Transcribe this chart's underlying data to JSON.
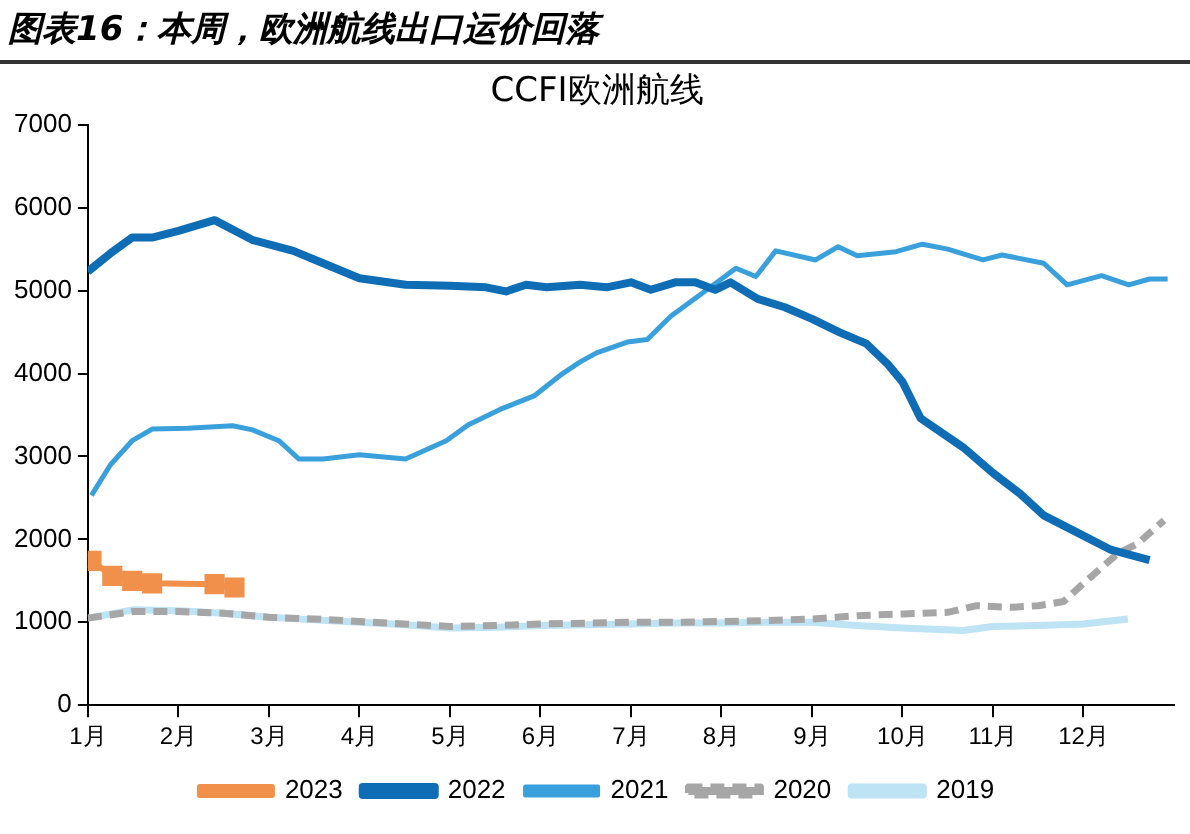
{
  "chart_data": {
    "type": "line",
    "title": "图表16：本周，欧洲航线出口运价回落",
    "subtitle": "CCFI欧洲航线",
    "xlim": [
      1,
      13
    ],
    "xticks": [
      {
        "value": 1,
        "label": "1月"
      },
      {
        "value": 2,
        "label": "2月"
      },
      {
        "value": 3,
        "label": "3月"
      },
      {
        "value": 4,
        "label": "4月"
      },
      {
        "value": 5,
        "label": "5月"
      },
      {
        "value": 6,
        "label": "6月"
      },
      {
        "value": 7,
        "label": "7月"
      },
      {
        "value": 8,
        "label": "8月"
      },
      {
        "value": 9,
        "label": "9月"
      },
      {
        "value": 10,
        "label": "10月"
      },
      {
        "value": 11,
        "label": "11月"
      },
      {
        "value": 12,
        "label": "12月"
      }
    ],
    "ylim": [
      0,
      7000
    ],
    "yticks": [
      0,
      1000,
      2000,
      3000,
      4000,
      5000,
      6000,
      7000
    ],
    "grid": false,
    "legend": "bottom",
    "marker": "none",
    "series": [
      {
        "name": "2019",
        "color": "#bde3f5",
        "x": [
          1,
          1.5,
          2,
          2.5,
          3,
          3.5,
          4,
          4.5,
          5,
          5.5,
          6,
          6.5,
          7,
          7.5,
          8,
          8.5,
          9,
          9.5,
          10,
          10.67,
          11,
          11.5,
          12,
          12.49
        ],
        "values": [
          1050,
          1150,
          1140,
          1110,
          1060,
          1030,
          1000,
          970,
          930,
          940,
          960,
          970,
          980,
          990,
          990,
          1000,
          1000,
          960,
          930,
          900,
          950,
          960,
          980,
          1040
        ]
      },
      {
        "name": "2020",
        "color": "#a6a6a6",
        "line_style": "dashed",
        "x": [
          1,
          1.5,
          2,
          2.5,
          3,
          3.5,
          4,
          4.5,
          5,
          5.5,
          6,
          6.5,
          7,
          7.5,
          8,
          8.5,
          9,
          9.27,
          9.5,
          10,
          10.5,
          10.82,
          11.2,
          11.5,
          11.78,
          12,
          12.38,
          12.6,
          12.89
        ],
        "values": [
          1050,
          1130,
          1130,
          1110,
          1060,
          1040,
          1010,
          980,
          950,
          960,
          980,
          990,
          1000,
          1000,
          1010,
          1020,
          1040,
          1060,
          1080,
          1100,
          1120,
          1200,
          1180,
          1200,
          1250,
          1470,
          1830,
          1950,
          2230
        ]
      },
      {
        "name": "2021",
        "color": "#3aa0dc",
        "x": [
          1.04,
          1.25,
          1.49,
          1.71,
          2.1,
          2.6,
          2.82,
          3.11,
          3.33,
          3.6,
          4,
          4.51,
          4.96,
          5.2,
          5.56,
          5.93,
          6.22,
          6.44,
          6.62,
          6.96,
          7.18,
          7.44,
          7.84,
          8.16,
          8.38,
          8.6,
          9.04,
          9.29,
          9.5,
          9.93,
          10.22,
          10.5,
          10.89,
          11.1,
          11.56,
          11.82,
          12.2,
          12.5,
          12.73,
          12.93
        ],
        "values": [
          2530,
          2900,
          3190,
          3330,
          3340,
          3370,
          3320,
          3190,
          2970,
          2970,
          3020,
          2970,
          3190,
          3380,
          3570,
          3730,
          3980,
          4140,
          4250,
          4380,
          4410,
          4690,
          5010,
          5270,
          5170,
          5480,
          5370,
          5530,
          5420,
          5470,
          5560,
          5500,
          5370,
          5430,
          5330,
          5070,
          5180,
          5070,
          5140,
          5140
        ]
      },
      {
        "name": "2022",
        "color": "#0f6db5",
        "x": [
          1,
          1.25,
          1.49,
          1.71,
          2,
          2.4,
          2.82,
          3.27,
          3.6,
          4,
          4.51,
          5,
          5.4,
          5.62,
          5.84,
          6.07,
          6.44,
          6.73,
          7,
          7.22,
          7.49,
          7.71,
          7.93,
          8.1,
          8.4,
          8.7,
          9,
          9.3,
          9.6,
          9.84,
          10.0,
          10.2,
          10.67,
          11.0,
          11.3,
          11.56,
          11.9,
          12.29,
          12.73
        ],
        "values": [
          5230,
          5450,
          5640,
          5640,
          5720,
          5850,
          5610,
          5480,
          5330,
          5150,
          5070,
          5060,
          5040,
          4990,
          5070,
          5040,
          5070,
          5040,
          5100,
          5010,
          5100,
          5100,
          5010,
          5100,
          4900,
          4800,
          4660,
          4500,
          4360,
          4110,
          3900,
          3460,
          3110,
          2800,
          2550,
          2290,
          2100,
          1880,
          1750
        ]
      },
      {
        "name": "2023",
        "color": "#f0904a",
        "marker": "square",
        "x": [
          1.04,
          1.27,
          1.49,
          1.71,
          2.4,
          2.62
        ],
        "values": [
          1740,
          1560,
          1500,
          1470,
          1460,
          1420
        ]
      }
    ]
  }
}
